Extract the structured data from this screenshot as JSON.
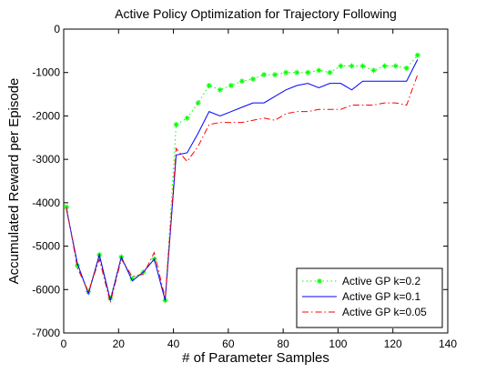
{
  "chart_data": {
    "type": "line",
    "title": "Active Policy Optimization for Trajectory Following",
    "xlabel": "# of Parameter Samples",
    "ylabel": "Accumulated Reward per Episode",
    "x": [
      1,
      5,
      9,
      13,
      17,
      21,
      25,
      29,
      33,
      37,
      41,
      45,
      49,
      53,
      57,
      61,
      65,
      69,
      73,
      77,
      81,
      85,
      89,
      93,
      97,
      101,
      105,
      109,
      113,
      117,
      121,
      125,
      129
    ],
    "series": [
      {
        "name": "Active GP k=0.2",
        "color": "#00ff00",
        "linestyle": "dotted",
        "marker": "star",
        "values": [
          -4100,
          -5450,
          -6050,
          -5200,
          -6200,
          -5250,
          -5750,
          -5600,
          -5300,
          -6250,
          -2200,
          -2050,
          -1700,
          -1300,
          -1400,
          -1300,
          -1200,
          -1150,
          -1050,
          -1050,
          -1000,
          -1000,
          -1000,
          -950,
          -1000,
          -850,
          -850,
          -850,
          -950,
          -850,
          -850,
          -900,
          -600
        ]
      },
      {
        "name": "Active GP k=0.1",
        "color": "#0000ff",
        "linestyle": "solid",
        "marker": "none",
        "values": [
          -4150,
          -5400,
          -6100,
          -5200,
          -6250,
          -5250,
          -5800,
          -5600,
          -5300,
          -6250,
          -2900,
          -2850,
          -2400,
          -1900,
          -2000,
          -1900,
          -1800,
          -1700,
          -1700,
          -1550,
          -1400,
          -1300,
          -1250,
          -1350,
          -1250,
          -1250,
          -1400,
          -1200,
          -1200,
          -1200,
          -1200,
          -1200,
          -700
        ]
      },
      {
        "name": "Active GP k=0.05",
        "color": "#ff0000",
        "linestyle": "dashdot",
        "marker": "none",
        "values": [
          -4100,
          -5500,
          -6050,
          -5300,
          -6300,
          -5300,
          -5700,
          -5650,
          -5150,
          -6200,
          -2750,
          -3050,
          -2700,
          -2200,
          -2150,
          -2150,
          -2150,
          -2100,
          -2050,
          -2100,
          -1950,
          -1900,
          -1900,
          -1850,
          -1850,
          -1850,
          -1750,
          -1750,
          -1750,
          -1700,
          -1700,
          -1750,
          -1050
        ]
      }
    ],
    "xlim": [
      0,
      140
    ],
    "xticks": [
      0,
      20,
      40,
      60,
      80,
      100,
      120,
      140
    ],
    "ylim": [
      -7000,
      0
    ],
    "yticks": [
      -7000,
      -6000,
      -5000,
      -4000,
      -3000,
      -2000,
      -1000,
      0
    ],
    "grid": false,
    "legend": "lower right"
  }
}
